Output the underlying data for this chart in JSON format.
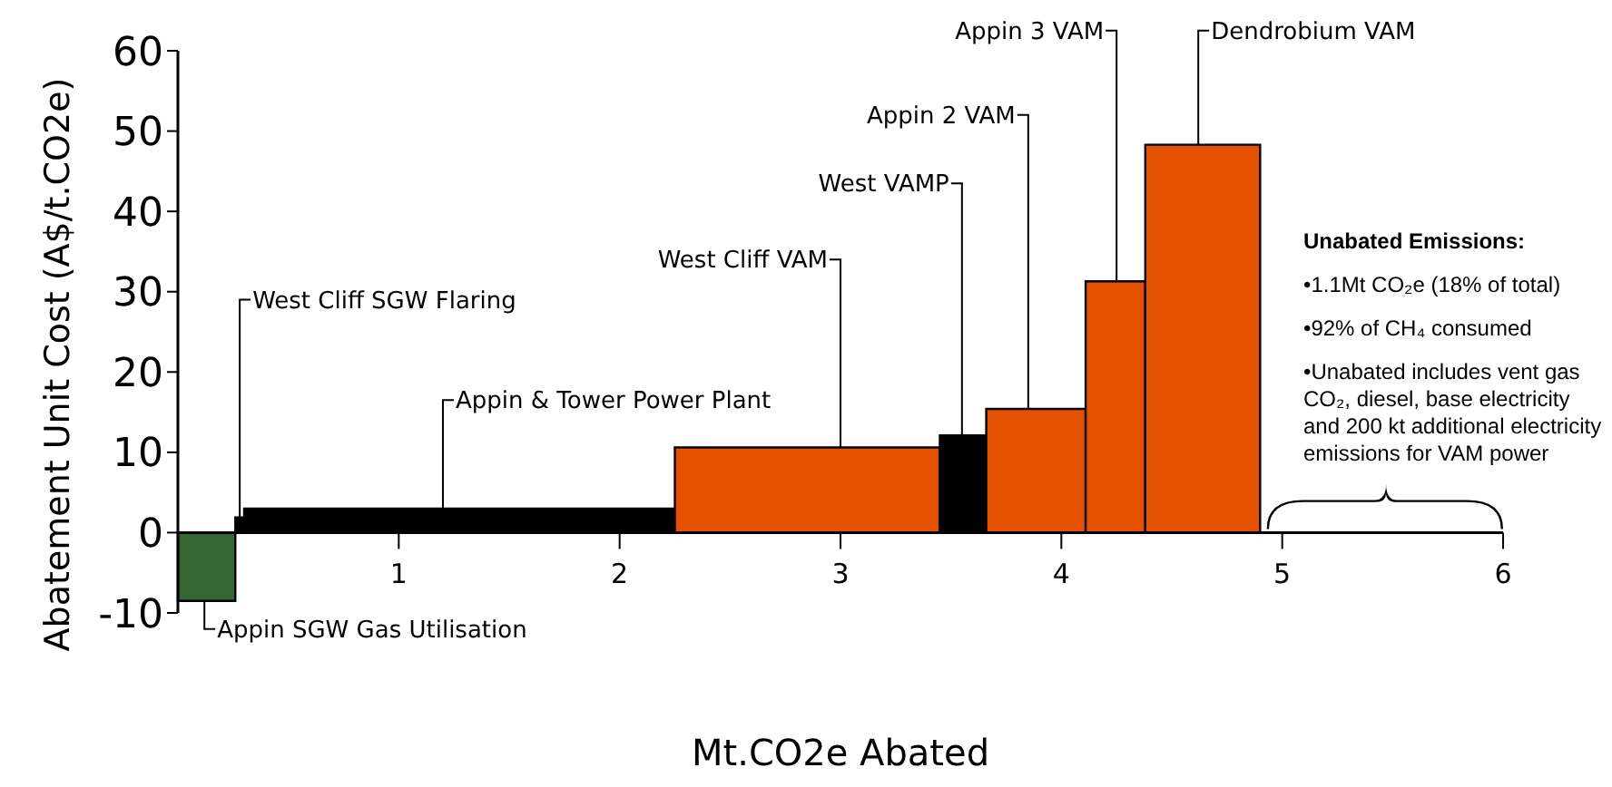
{
  "chart_data": {
    "type": "histogram",
    "bins": [
      0,
      0.26,
      0.3,
      2.25,
      3.45,
      3.66,
      4.11,
      4.38,
      4.9
    ],
    "values": [
      -8.5,
      1.9,
      3,
      10.6,
      12.1,
      15.4,
      31.3,
      48.3
    ],
    "colors": [
      "#336633",
      "#000000",
      "#000000",
      "#e65100",
      "#000000",
      "#e65100",
      "#e65100",
      "#e65100"
    ],
    "xlabel": "Mt.CO2e Abated",
    "ylabel": "Abatement Unit Cost (A$/t.CO2e)",
    "xlim": [
      0,
      6
    ],
    "xticks": [
      1,
      2,
      3,
      4,
      5,
      6
    ],
    "ylim": [
      -10,
      60
    ],
    "yticks": [
      -10,
      0,
      10,
      20,
      30,
      40,
      50,
      60
    ],
    "grid": false,
    "annotations": [
      {
        "text": "Appin SGW Gas Utilisation",
        "x": 0.12,
        "y": -8.5
      },
      {
        "text": "West Cliff SGW Flaring",
        "x": 0.28,
        "y": 1.9
      },
      {
        "text": "Appin & Tower Power Plant",
        "x": 1.2,
        "y": 3
      },
      {
        "text": "West Cliff VAM",
        "x": 3.0,
        "y": 10.6
      },
      {
        "text": "West VAMP",
        "x": 3.55,
        "y": 12.1
      },
      {
        "text": "Appin 2 VAM",
        "x": 3.85,
        "y": 15.4
      },
      {
        "text": "Appin 3 VAM",
        "x": 4.25,
        "y": 31.3
      },
      {
        "text": "Dendrobium VAM",
        "x": 4.62,
        "y": 48.3
      },
      "Unabated Emissions:",
      "•1.1Mt CO₂e (18% of total)",
      "•92% of CH₄ consumed",
      "•Unabated includes vent gas CO₂, diesel, base electricity and 200 kt additional electricity emissions for VAM power"
    ]
  }
}
